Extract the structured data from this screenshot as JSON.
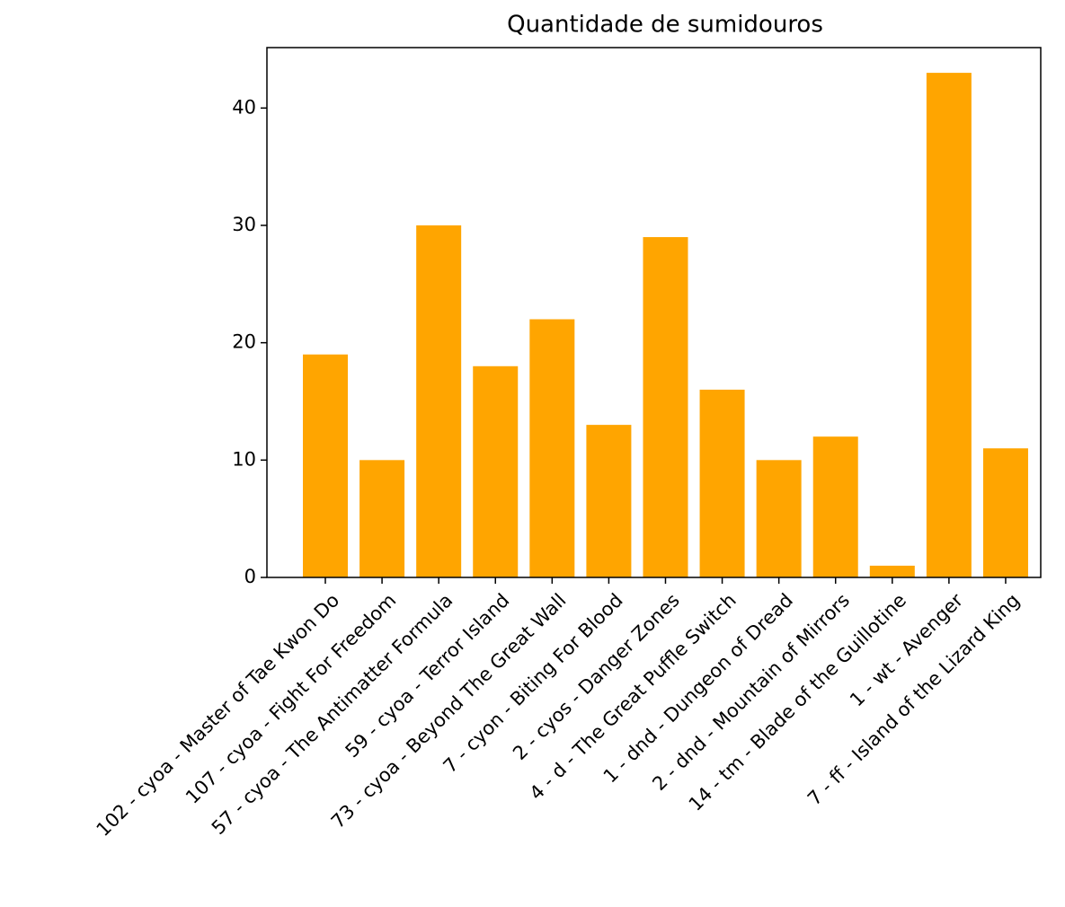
{
  "chart_data": {
    "type": "bar",
    "title": "Quantidade de sumidouros",
    "categories": [
      "102 - cyoa - Master of Tae Kwon Do",
      "107 - cyoa - Fight For Freedom",
      "57 - cyoa - The Antimatter Formula",
      "59 - cyoa - Terror Island",
      "73 - cyoa - Beyond The Great Wall",
      "7 - cyon - Biting For Blood",
      "2 - cyos - Danger Zones",
      "4 - d - The Great Puffle Switch",
      "1 - dnd - Dungeon of Dread",
      "2 - dnd - Mountain of Mirrors",
      "14 - tm - Blade of the Guillotine",
      "1 - wt - Avenger",
      "7 - ff - Island of the Lizard King"
    ],
    "values": [
      19,
      10,
      30,
      18,
      22,
      13,
      29,
      16,
      10,
      12,
      1,
      43,
      11
    ],
    "color": "#ffa500",
    "ylim": [
      0,
      45.15
    ],
    "yticks": [
      0,
      10,
      20,
      30,
      40
    ],
    "grid": false
  }
}
